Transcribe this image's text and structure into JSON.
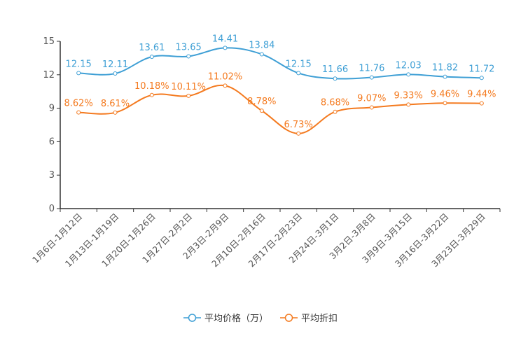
{
  "chart_data": {
    "type": "line",
    "title": "",
    "xlabel": "",
    "ylabel": "",
    "ylim": [
      0,
      15
    ],
    "yticks": [
      "0",
      "3",
      "6",
      "9",
      "12",
      "15"
    ],
    "categories": [
      "1月6日-1月12日",
      "1月13日-1月19日",
      "1月20日-1月26日",
      "1月27日-2月2日",
      "2月3日-2月9日",
      "2月10日-2月16日",
      "2月17日-2月23日",
      "2月24日-3月1日",
      "3月2日-3月8日",
      "3月9日-3月15日",
      "3月16日-3月22日",
      "3月23日-3月29日"
    ],
    "legend_position": "bottom",
    "grid": false,
    "series": [
      {
        "name": "平均价格（万）",
        "color": "#3e9fd5",
        "values": [
          12.15,
          12.11,
          13.61,
          13.65,
          14.41,
          13.84,
          12.15,
          11.66,
          11.76,
          12.03,
          11.82,
          11.72
        ],
        "labels": [
          "12.15",
          "12.11",
          "13.61",
          "13.65",
          "14.41",
          "13.84",
          "12.15",
          "11.66",
          "11.76",
          "12.03",
          "11.82",
          "11.72"
        ]
      },
      {
        "name": "平均折扣",
        "color": "#f47a1f",
        "values": [
          8.62,
          8.61,
          10.18,
          10.11,
          11.02,
          8.78,
          6.73,
          8.68,
          9.07,
          9.33,
          9.46,
          9.44
        ],
        "labels": [
          "8.62%",
          "8.61%",
          "10.18%",
          "10.11%",
          "11.02%",
          "8.78%",
          "6.73%",
          "8.68%",
          "9.07%",
          "9.33%",
          "9.46%",
          "9.44%"
        ]
      }
    ]
  }
}
